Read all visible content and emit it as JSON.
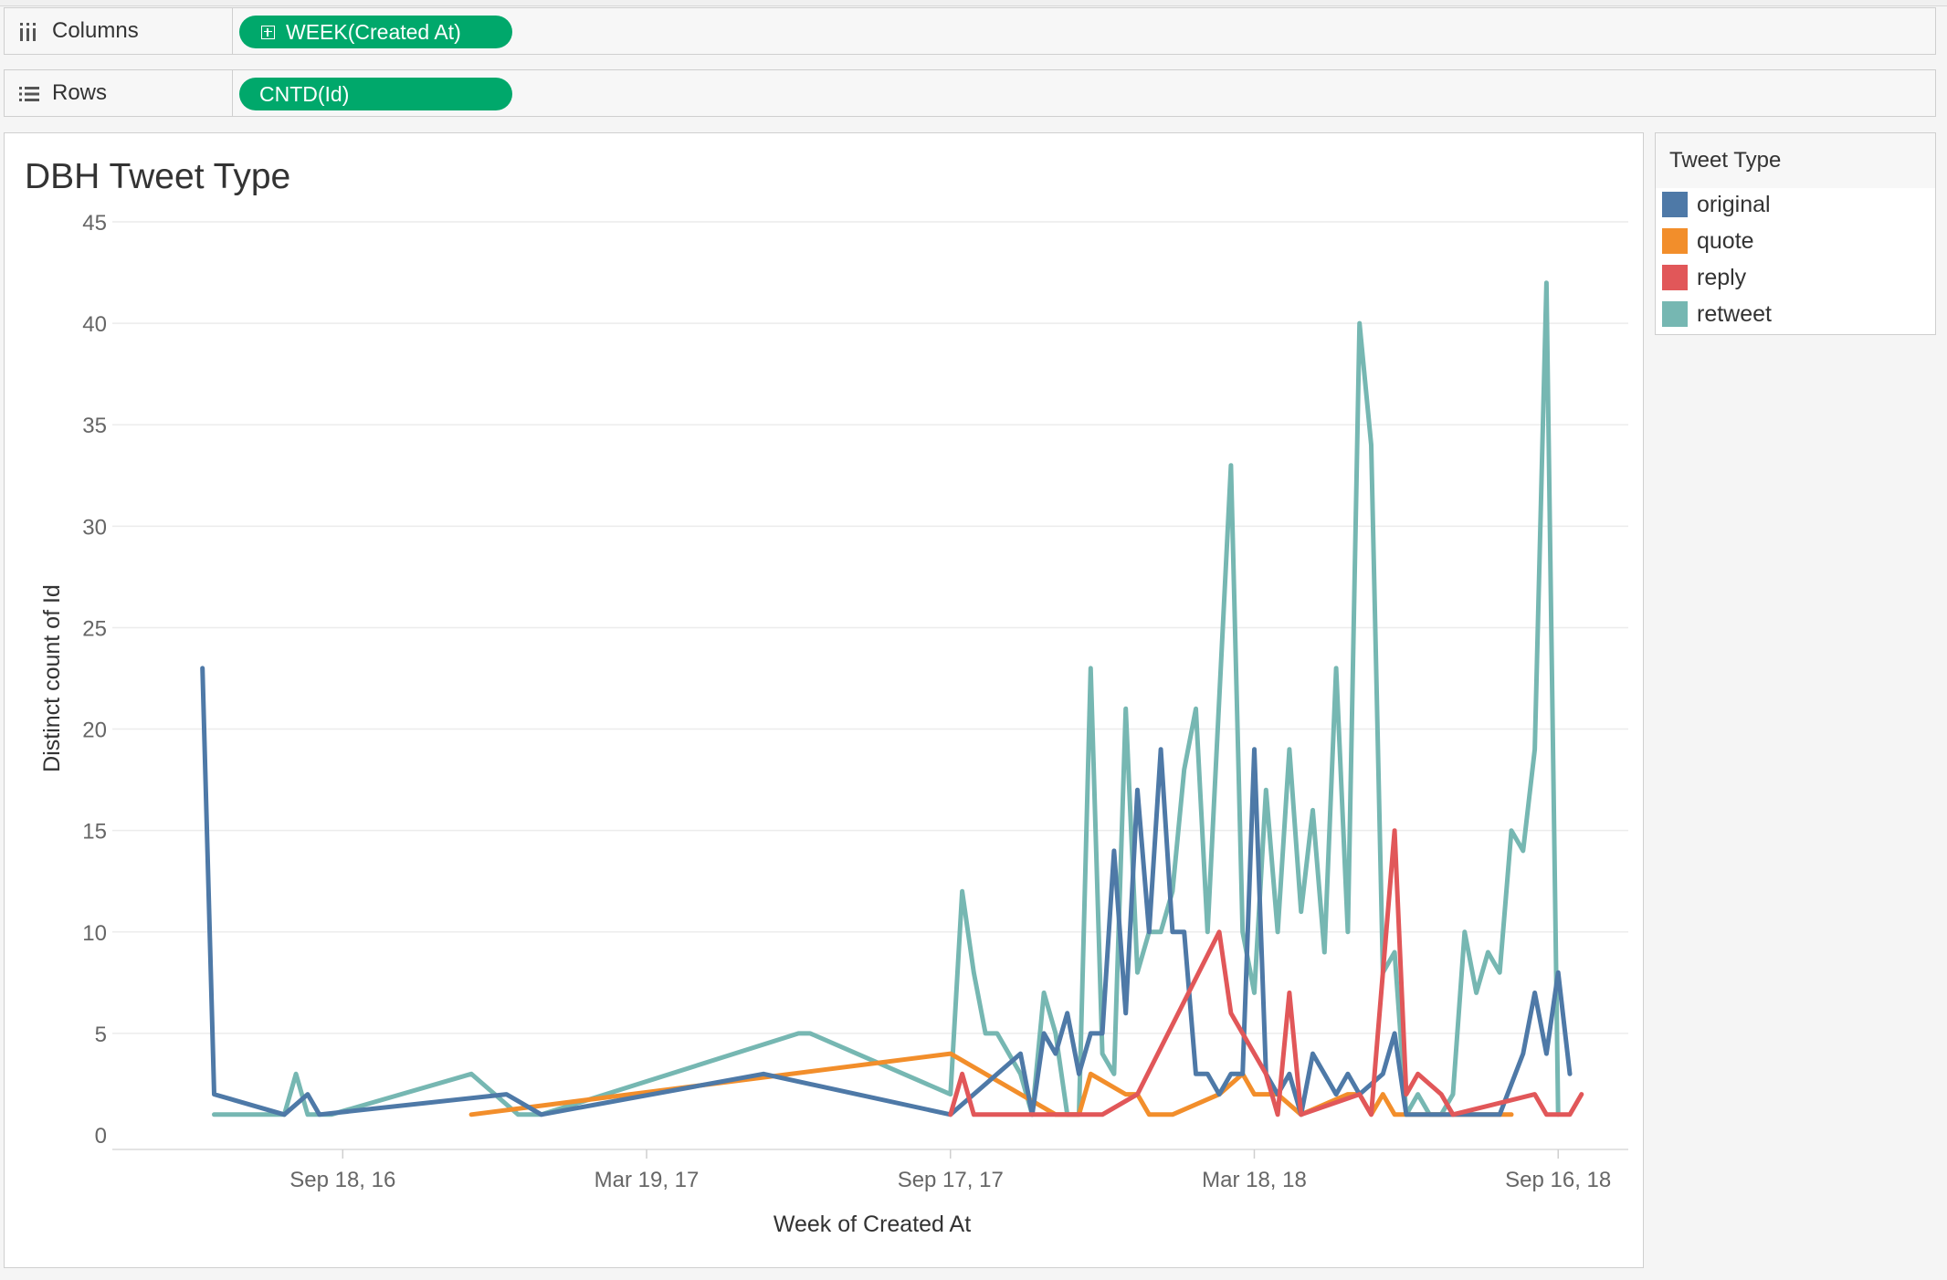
{
  "shelves": {
    "columns": {
      "label": "Columns",
      "pill": "WEEK(Created At)"
    },
    "rows": {
      "label": "Rows",
      "pill": "CNTD(Id)"
    }
  },
  "legend": {
    "title": "Tweet Type",
    "items": [
      {
        "label": "original",
        "color": "#4e79a7"
      },
      {
        "label": "quote",
        "color": "#f28e2b"
      },
      {
        "label": "reply",
        "color": "#e15759"
      },
      {
        "label": "retweet",
        "color": "#76b7b2"
      }
    ]
  },
  "chart_data": {
    "type": "line",
    "title": "DBH Tweet Type",
    "xlabel": "Week of Created At",
    "ylabel": "Distinct count of Id",
    "ylim": [
      0,
      45
    ],
    "yticks": [
      0,
      5,
      10,
      15,
      20,
      25,
      30,
      35,
      40,
      45
    ],
    "xlim": [
      "2016-05-03",
      "2018-10-28"
    ],
    "xticks": [
      {
        "date": "2016-09-18",
        "label": "Sep 18, 16"
      },
      {
        "date": "2017-03-19",
        "label": "Mar 19, 17"
      },
      {
        "date": "2017-09-17",
        "label": "Sep 17, 17"
      },
      {
        "date": "2018-03-18",
        "label": "Mar 18, 18"
      },
      {
        "date": "2018-09-16",
        "label": "Sep 16, 18"
      }
    ],
    "grid": true,
    "legend_position": "right",
    "series": [
      {
        "name": "original",
        "points": [
          [
            "2016-06-26",
            23
          ],
          [
            "2016-07-03",
            2
          ],
          [
            "2016-08-14",
            1
          ],
          [
            "2016-08-28",
            2
          ],
          [
            "2016-09-04",
            1
          ],
          [
            "2016-12-25",
            2
          ],
          [
            "2017-01-15",
            1
          ],
          [
            "2017-05-28",
            3
          ],
          [
            "2017-09-17",
            1
          ],
          [
            "2017-10-29",
            4
          ],
          [
            "2017-11-05",
            1
          ],
          [
            "2017-11-12",
            5
          ],
          [
            "2017-11-19",
            4
          ],
          [
            "2017-11-26",
            6
          ],
          [
            "2017-12-03",
            3
          ],
          [
            "2017-12-10",
            5
          ],
          [
            "2017-12-17",
            5
          ],
          [
            "2017-12-24",
            14
          ],
          [
            "2017-12-31",
            6
          ],
          [
            "2018-01-07",
            17
          ],
          [
            "2018-01-14",
            10
          ],
          [
            "2018-01-21",
            19
          ],
          [
            "2018-01-28",
            10
          ],
          [
            "2018-02-04",
            10
          ],
          [
            "2018-02-11",
            3
          ],
          [
            "2018-02-18",
            3
          ],
          [
            "2018-02-25",
            2
          ],
          [
            "2018-03-04",
            3
          ],
          [
            "2018-03-11",
            3
          ],
          [
            "2018-03-18",
            19
          ],
          [
            "2018-03-25",
            3
          ],
          [
            "2018-04-01",
            2
          ],
          [
            "2018-04-08",
            3
          ],
          [
            "2018-04-15",
            1
          ],
          [
            "2018-04-22",
            4
          ],
          [
            "2018-04-29",
            3
          ],
          [
            "2018-05-06",
            2
          ],
          [
            "2018-05-13",
            3
          ],
          [
            "2018-05-20",
            2
          ],
          [
            "2018-06-03",
            3
          ],
          [
            "2018-06-10",
            5
          ],
          [
            "2018-06-17",
            1
          ],
          [
            "2018-08-12",
            1
          ],
          [
            "2018-08-26",
            4
          ],
          [
            "2018-09-02",
            7
          ],
          [
            "2018-09-09",
            4
          ],
          [
            "2018-09-16",
            8
          ],
          [
            "2018-09-23",
            3
          ]
        ]
      },
      {
        "name": "quote",
        "points": [
          [
            "2016-12-04",
            1
          ],
          [
            "2017-09-17",
            4
          ],
          [
            "2017-11-19",
            1
          ],
          [
            "2017-12-03",
            1
          ],
          [
            "2017-12-10",
            3
          ],
          [
            "2017-12-31",
            2
          ],
          [
            "2018-01-07",
            2
          ],
          [
            "2018-01-14",
            1
          ],
          [
            "2018-01-28",
            1
          ],
          [
            "2018-02-25",
            2
          ],
          [
            "2018-03-11",
            3
          ],
          [
            "2018-03-18",
            2
          ],
          [
            "2018-04-01",
            2
          ],
          [
            "2018-04-15",
            1
          ],
          [
            "2018-05-13",
            2
          ],
          [
            "2018-05-20",
            2
          ],
          [
            "2018-05-27",
            1
          ],
          [
            "2018-06-03",
            2
          ],
          [
            "2018-06-10",
            1
          ],
          [
            "2018-08-19",
            1
          ]
        ]
      },
      {
        "name": "reply",
        "points": [
          [
            "2017-09-17",
            1
          ],
          [
            "2017-09-24",
            3
          ],
          [
            "2017-10-01",
            1
          ],
          [
            "2017-12-17",
            1
          ],
          [
            "2018-01-07",
            2
          ],
          [
            "2018-02-25",
            10
          ],
          [
            "2018-03-04",
            6
          ],
          [
            "2018-03-25",
            3
          ],
          [
            "2018-04-01",
            1
          ],
          [
            "2018-04-08",
            7
          ],
          [
            "2018-04-15",
            1
          ],
          [
            "2018-05-20",
            2
          ],
          [
            "2018-05-27",
            1
          ],
          [
            "2018-06-10",
            15
          ],
          [
            "2018-06-17",
            2
          ],
          [
            "2018-06-24",
            3
          ],
          [
            "2018-07-08",
            2
          ],
          [
            "2018-07-15",
            1
          ],
          [
            "2018-09-02",
            2
          ],
          [
            "2018-09-09",
            1
          ],
          [
            "2018-09-23",
            1
          ],
          [
            "2018-09-30",
            2
          ]
        ]
      },
      {
        "name": "retweet",
        "points": [
          [
            "2016-07-03",
            1
          ],
          [
            "2016-08-14",
            1
          ],
          [
            "2016-08-21",
            3
          ],
          [
            "2016-08-28",
            1
          ],
          [
            "2016-09-11",
            1
          ],
          [
            "2016-12-04",
            3
          ],
          [
            "2017-01-01",
            1
          ],
          [
            "2017-01-15",
            1
          ],
          [
            "2017-06-18",
            5
          ],
          [
            "2017-06-25",
            5
          ],
          [
            "2017-09-17",
            2
          ],
          [
            "2017-09-24",
            12
          ],
          [
            "2017-10-01",
            8
          ],
          [
            "2017-10-08",
            5
          ],
          [
            "2017-10-15",
            5
          ],
          [
            "2017-10-22",
            4
          ],
          [
            "2017-10-29",
            3
          ],
          [
            "2017-11-05",
            1
          ],
          [
            "2017-11-12",
            7
          ],
          [
            "2017-11-19",
            5
          ],
          [
            "2017-11-26",
            1
          ],
          [
            "2017-12-03",
            1
          ],
          [
            "2017-12-10",
            23
          ],
          [
            "2017-12-17",
            4
          ],
          [
            "2017-12-24",
            3
          ],
          [
            "2017-12-31",
            21
          ],
          [
            "2018-01-07",
            8
          ],
          [
            "2018-01-14",
            10
          ],
          [
            "2018-01-21",
            10
          ],
          [
            "2018-01-28",
            12
          ],
          [
            "2018-02-04",
            18
          ],
          [
            "2018-02-11",
            21
          ],
          [
            "2018-02-18",
            10
          ],
          [
            "2018-03-04",
            33
          ],
          [
            "2018-03-11",
            10
          ],
          [
            "2018-03-18",
            7
          ],
          [
            "2018-03-25",
            17
          ],
          [
            "2018-04-01",
            10
          ],
          [
            "2018-04-08",
            19
          ],
          [
            "2018-04-15",
            11
          ],
          [
            "2018-04-22",
            16
          ],
          [
            "2018-04-29",
            9
          ],
          [
            "2018-05-06",
            23
          ],
          [
            "2018-05-13",
            10
          ],
          [
            "2018-05-20",
            40
          ],
          [
            "2018-05-27",
            34
          ],
          [
            "2018-06-03",
            8
          ],
          [
            "2018-06-10",
            9
          ],
          [
            "2018-06-17",
            1
          ],
          [
            "2018-06-24",
            2
          ],
          [
            "2018-07-01",
            1
          ],
          [
            "2018-07-08",
            1
          ],
          [
            "2018-07-15",
            2
          ],
          [
            "2018-07-22",
            10
          ],
          [
            "2018-07-29",
            7
          ],
          [
            "2018-08-05",
            9
          ],
          [
            "2018-08-12",
            8
          ],
          [
            "2018-08-19",
            15
          ],
          [
            "2018-08-26",
            14
          ],
          [
            "2018-09-02",
            19
          ],
          [
            "2018-09-09",
            42
          ],
          [
            "2018-09-16",
            1
          ]
        ]
      }
    ]
  }
}
